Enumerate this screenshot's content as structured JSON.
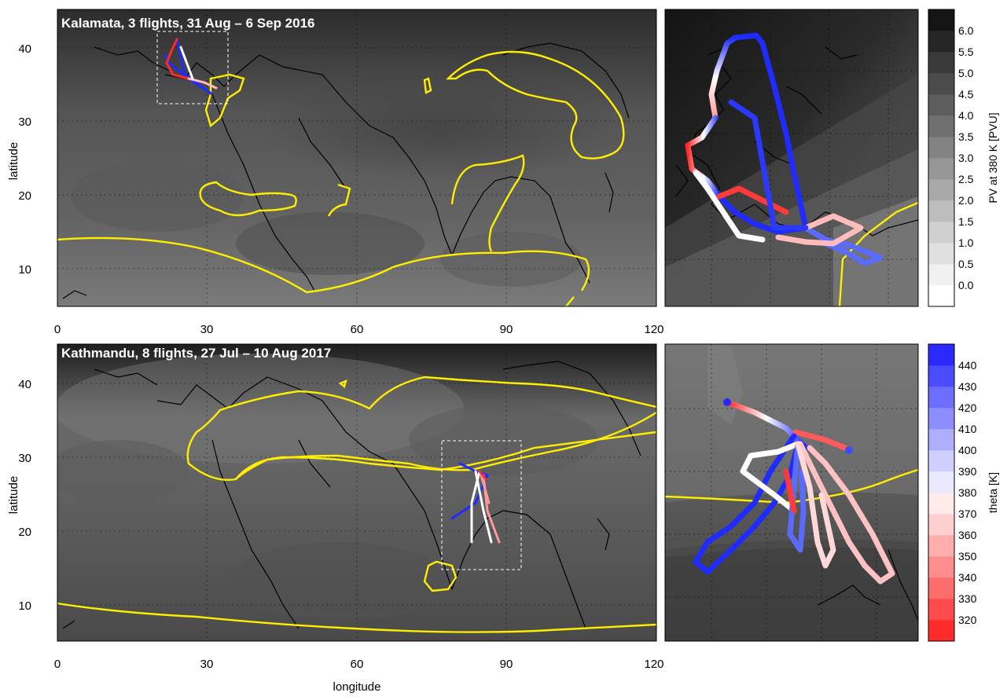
{
  "panels": [
    {
      "title": "Kalamata, 3 flights, 31 Aug – 6 Sep 2016",
      "ylabel": "latitude",
      "xticks": [
        "0",
        "30",
        "60",
        "90",
        "120"
      ],
      "yticks": [
        "10",
        "20",
        "30",
        "40"
      ],
      "colorbar": {
        "label": "PV at 380 K [PVU]",
        "ticks": [
          "0.0",
          "0.5",
          "1.0",
          "1.5",
          "2.0",
          "2.5",
          "3.0",
          "3.5",
          "4.0",
          "4.5",
          "5.0",
          "5.5",
          "6.0"
        ],
        "colors": [
          "#ffffff",
          "#f0f0f0",
          "#e0e0e0",
          "#d0d0d0",
          "#bdbdbd",
          "#a9a9a9",
          "#969696",
          "#838383",
          "#707070",
          "#5e5e5e",
          "#4c4c4c",
          "#3a3a3a",
          "#262626",
          "#141414"
        ]
      }
    },
    {
      "title": "Kathmandu, 8 flights, 27 Jul – 10 Aug 2017",
      "ylabel": "latitude",
      "xlabel": "longitude",
      "xticks": [
        "0",
        "30",
        "60",
        "90",
        "120"
      ],
      "yticks": [
        "10",
        "20",
        "30",
        "40"
      ],
      "colorbar": {
        "label": "theta [K]",
        "ticks": [
          "320",
          "330",
          "340",
          "350",
          "360",
          "370",
          "380",
          "390",
          "400",
          "410",
          "420",
          "430",
          "440"
        ],
        "colors": [
          "#ff2a2a",
          "#ff4b4b",
          "#ff6c6c",
          "#ff8d8d",
          "#ffaeae",
          "#ffcfcf",
          "#ffeaea",
          "#eaeaff",
          "#cfcfff",
          "#aeaeff",
          "#8d8dff",
          "#6c6cff",
          "#4b4bff",
          "#2a2aff"
        ]
      }
    }
  ],
  "colors": {
    "contour": "#ffee00",
    "field_dark": "#3a3a3a",
    "field_mid": "#6e6e6e",
    "flight_cold": "#1f2bff",
    "flight_warm": "#ff2a2a"
  }
}
